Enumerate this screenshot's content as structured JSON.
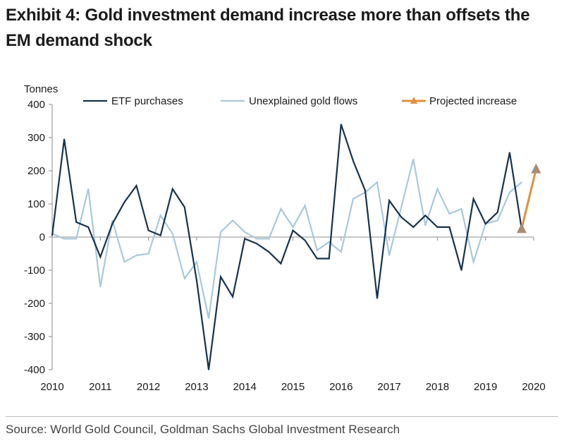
{
  "title": {
    "line1": "Exhibit 4: Gold investment demand increase more than offsets the",
    "line2": "EM demand shock"
  },
  "source": "Source: World Gold Council, Goldman Sachs Global Investment Research",
  "colors": {
    "etf": "#17324d",
    "unexplained": "#a9c9da",
    "projected": "#e09040",
    "projected_marker": "#a98c74"
  },
  "chart_data": {
    "type": "line",
    "ylabel": "Tonnes",
    "ylim": [
      -400,
      400
    ],
    "yticks": [
      400,
      300,
      200,
      100,
      0,
      -100,
      -200,
      -300,
      -400
    ],
    "ytick_labels": [
      "400",
      "300",
      "200",
      "100",
      "0",
      "-100",
      "-200",
      "-300",
      "-400"
    ],
    "xlim": [
      2010,
      2020
    ],
    "xticks": [
      2010,
      2011,
      2012,
      2013,
      2014,
      2015,
      2016,
      2017,
      2018,
      2019,
      2020
    ],
    "xtick_labels": [
      "2010",
      "2011",
      "2012",
      "2013",
      "2014",
      "2015",
      "2016",
      "2017",
      "2018",
      "2019",
      "2020"
    ],
    "legend": [
      "ETF purchases",
      "Unexplained gold flows",
      "Projected increase"
    ],
    "series": [
      {
        "name": "ETF purchases",
        "x": [
          2010.0,
          2010.25,
          2010.5,
          2010.75,
          2011.0,
          2011.25,
          2011.5,
          2011.75,
          2012.0,
          2012.25,
          2012.5,
          2012.75,
          2013.0,
          2013.25,
          2013.5,
          2013.75,
          2014.0,
          2014.25,
          2014.5,
          2014.75,
          2015.0,
          2015.25,
          2015.5,
          2015.75,
          2016.0,
          2016.25,
          2016.5,
          2016.75,
          2017.0,
          2017.25,
          2017.5,
          2017.75,
          2018.0,
          2018.25,
          2018.5,
          2018.75,
          2019.0,
          2019.25,
          2019.5,
          2019.75
        ],
        "values": [
          5,
          295,
          45,
          30,
          -60,
          40,
          105,
          155,
          20,
          5,
          145,
          90,
          -130,
          -400,
          -120,
          -180,
          -5,
          -20,
          -45,
          -80,
          20,
          -10,
          -65,
          -65,
          340,
          230,
          140,
          -185,
          110,
          60,
          30,
          65,
          30,
          30,
          -100,
          115,
          40,
          75,
          255,
          25
        ]
      },
      {
        "name": "Unexplained gold flows",
        "x": [
          2010.0,
          2010.25,
          2010.5,
          2010.75,
          2011.0,
          2011.25,
          2011.5,
          2011.75,
          2012.0,
          2012.25,
          2012.5,
          2012.75,
          2013.0,
          2013.25,
          2013.5,
          2013.75,
          2014.0,
          2014.25,
          2014.5,
          2014.75,
          2015.0,
          2015.25,
          2015.5,
          2015.75,
          2016.0,
          2016.25,
          2016.5,
          2016.75,
          2017.0,
          2017.25,
          2017.5,
          2017.75,
          2018.0,
          2018.25,
          2018.5,
          2018.75,
          2019.0,
          2019.25,
          2019.5,
          2019.75
        ],
        "values": [
          10,
          -5,
          -5,
          145,
          -150,
          50,
          -75,
          -55,
          -50,
          65,
          10,
          -125,
          -75,
          -245,
          15,
          50,
          15,
          -5,
          -5,
          85,
          30,
          95,
          -40,
          -15,
          -45,
          115,
          135,
          165,
          -55,
          90,
          235,
          35,
          145,
          70,
          85,
          -75,
          40,
          50,
          135,
          165
        ]
      },
      {
        "name": "Projected increase",
        "x": [
          2019.75,
          2020.05
        ],
        "values": [
          25,
          205
        ]
      }
    ]
  }
}
